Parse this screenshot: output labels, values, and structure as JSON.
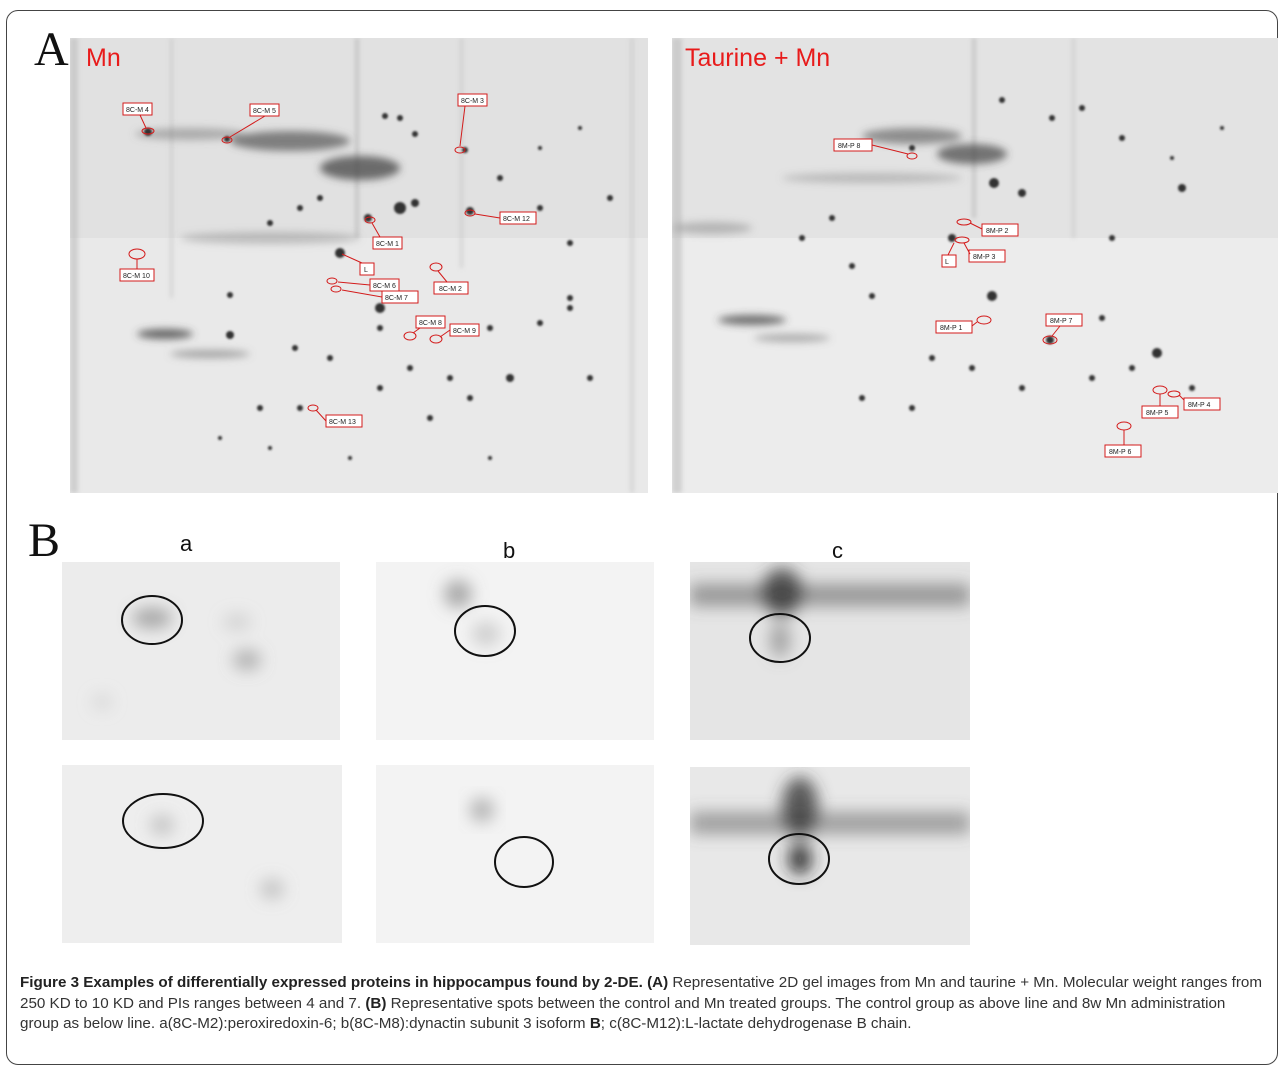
{
  "panel_a": {
    "letter": "A",
    "left_gel": {
      "title": "Mn",
      "labels": [
        "8C-M 4",
        "8C-M 5",
        "8C-M 3",
        "8C-M 12",
        "8C-M 1",
        "8C-M 10",
        "L",
        "8C-M 2",
        "8C-M 6",
        "8C-M 7",
        "8C-M 8",
        "8C-M 9",
        "8C-M 13"
      ]
    },
    "right_gel": {
      "title": "Taurine + Mn",
      "labels": [
        "8M-P 8",
        "8M-P 2",
        "L",
        "8M-P 3",
        "8M-P 1",
        "8M-P 7",
        "8M-P 5",
        "8M-P 4",
        "8M-P 6"
      ]
    }
  },
  "panel_b": {
    "letter": "B",
    "columns": [
      "a",
      "b",
      "c"
    ]
  },
  "caption": {
    "lead": "Figure 3 Examples of differentially expressed proteins in hippocampus found by 2-DE.",
    "tag_a": "(A)",
    "text_a": "Representative 2D gel images from Mn and taurine + Mn. Molecular weight ranges from 250 KD to 10 KD and PIs ranges between 4 and 7.",
    "tag_b": "(B)",
    "text_b1": "Representative spots between the control and Mn treated groups. The control group as above line and 8w Mn administration group as below line. a(8C-M2):peroxiredoxin-6; b(8C-M8):dynactin subunit 3 isoform",
    "bold_b": "B",
    "text_b2": "; c(8C-M12):L-lactate dehydrogenase B chain."
  }
}
